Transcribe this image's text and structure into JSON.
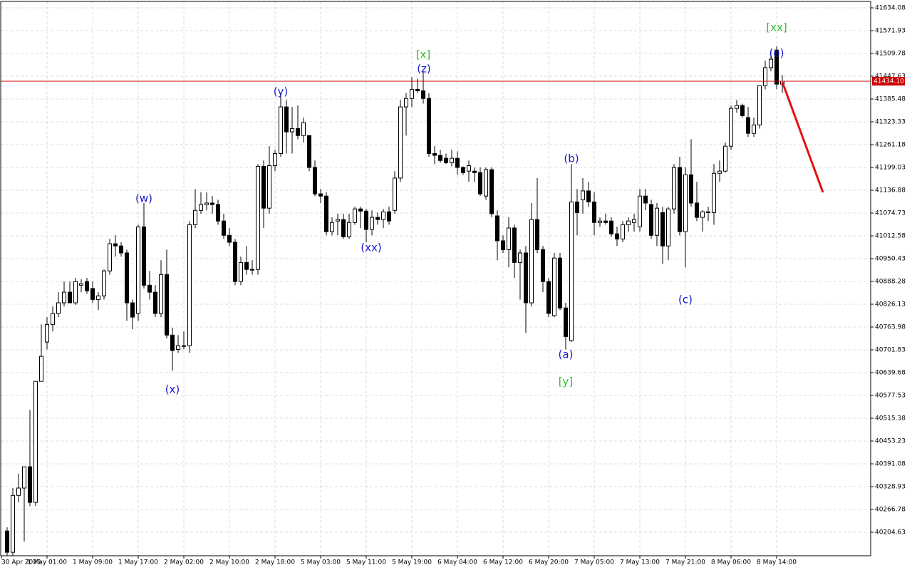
{
  "chart_data": {
    "type": "candlestick",
    "open": [
      40208,
      40150,
      40305,
      40325,
      40383,
      40286,
      40616,
      40723,
      40771,
      40801,
      40830,
      40859,
      40830,
      40878,
      40888,
      40869,
      40839,
      40849,
      40917,
      40991,
      40985,
      40966,
      40830,
      40801,
      41037,
      40878,
      40859,
      40801,
      40907,
      40742,
      40703,
      40713,
      40713,
      41043,
      41082,
      41098,
      41102,
      41098,
      41053,
      41014,
      40995,
      40888,
      40940,
      40921,
      40921,
      41202,
      41088,
      41204,
      41237,
      41364,
      41296,
      41305,
      41286,
      41286,
      41199,
      41127,
      41121,
      41024,
      41053,
      41057,
      41010,
      41049,
      41086,
      41080,
      41030,
      41063,
      41057,
      41078,
      41082,
      41170,
      41364,
      41387,
      41412,
      41408,
      41387,
      41237,
      41232,
      41224,
      41212,
      41224,
      41199,
      41189,
      41189,
      41185,
      41121,
      41193,
      41067,
      40999,
      40975,
      41034,
      40940,
      40966,
      40830,
      41057,
      40975,
      40888,
      40795,
      40952,
      40816,
      40727,
      41105,
      41111,
      41135,
      41105,
      41049,
      41053,
      41053,
      41018,
      41004,
      41043,
      41049,
      41037,
      41121,
      41098,
      41014,
      41076,
      40985,
      41086,
      41199,
      41024,
      41179,
      41102,
      41063,
      41078,
      41076,
      41183,
      41189,
      41257,
      41360,
      41368,
      41335,
      41292,
      41315,
      41422,
      41471,
      41519,
      41426
    ],
    "high": [
      40218,
      40325,
      40364,
      40383,
      40538,
      40616,
      40771,
      40791,
      40820,
      40859,
      40888,
      40888,
      40898,
      40894,
      40898,
      40888,
      40859,
      40921,
      41004,
      41014,
      40995,
      40975,
      40839,
      41043,
      41102,
      40917,
      40878,
      40946,
      40975,
      40762,
      40742,
      40752,
      41053,
      41140,
      41131,
      41131,
      41121,
      41111,
      41073,
      41034,
      41004,
      40956,
      40985,
      40946,
      41208,
      41218,
      41257,
      41247,
      41402,
      41383,
      41364,
      41368,
      41335,
      41286,
      41218,
      41140,
      41131,
      41063,
      41073,
      41073,
      41073,
      41092,
      41092,
      41086,
      41082,
      41076,
      41086,
      41092,
      41189,
      41383,
      41402,
      41445,
      41441,
      41461,
      41402,
      41257,
      41247,
      41237,
      41247,
      41243,
      41202,
      41218,
      41199,
      41199,
      41199,
      41199,
      41082,
      41014,
      41063,
      41043,
      40975,
      40985,
      41102,
      41170,
      40985,
      40898,
      40966,
      40966,
      40830,
      41208,
      41140,
      41170,
      41160,
      41131,
      41063,
      41073,
      41063,
      41037,
      41053,
      41063,
      41073,
      41140,
      41140,
      41111,
      41102,
      41092,
      41092,
      41208,
      41228,
      41199,
      41276,
      41160,
      41082,
      41092,
      41208,
      41218,
      41267,
      41368,
      41383,
      41373,
      41364,
      41335,
      41422,
      41490,
      41519,
      41529,
      41451
    ],
    "low": [
      40140,
      40140,
      40286,
      40179,
      40276,
      40276,
      40616,
      40703,
      40752,
      40791,
      40820,
      40830,
      40824,
      40859,
      40855,
      40830,
      40810,
      40839,
      40907,
      40956,
      40956,
      40781,
      40758,
      40781,
      40869,
      40839,
      40791,
      40791,
      40733,
      40645,
      40694,
      40703,
      40694,
      41034,
      41073,
      41082,
      41073,
      41043,
      41004,
      40985,
      40878,
      40878,
      40907,
      40907,
      40907,
      41034,
      41073,
      41189,
      41228,
      41237,
      41237,
      41276,
      41267,
      41189,
      41121,
      41102,
      41014,
      41014,
      41014,
      41004,
      41004,
      41043,
      41034,
      40995,
      41014,
      41043,
      41034,
      41043,
      41073,
      41160,
      41286,
      41364,
      41402,
      41373,
      41228,
      41208,
      41212,
      41208,
      41202,
      41179,
      41179,
      41160,
      41160,
      41121,
      41111,
      41063,
      40946,
      40966,
      40927,
      40898,
      40839,
      40748,
      40820,
      40966,
      40859,
      40791,
      40791,
      40810,
      40703,
      40723,
      41014,
      41073,
      41092,
      41014,
      41037,
      41043,
      41010,
      40985,
      40995,
      41024,
      41024,
      41024,
      41082,
      41004,
      40985,
      40936,
      40946,
      41073,
      41014,
      40927,
      41092,
      41053,
      41024,
      41053,
      41043,
      41160,
      41185,
      41247,
      41348,
      41335,
      41282,
      41282,
      41305,
      41412,
      41461,
      41412,
      41402
    ],
    "close": [
      40150,
      40305,
      40325,
      40383,
      40286,
      40616,
      40684,
      40771,
      40801,
      40830,
      40859,
      40830,
      40888,
      40882,
      40863,
      40839,
      40849,
      40917,
      40991,
      40985,
      40966,
      40830,
      40791,
      41037,
      40878,
      40859,
      40801,
      40907,
      40742,
      40700,
      40713,
      40713,
      41043,
      41082,
      41098,
      41102,
      41098,
      41053,
      41014,
      40995,
      40888,
      40940,
      40921,
      40921,
      41202,
      41088,
      41204,
      41237,
      41364,
      41296,
      41305,
      41286,
      41321,
      41199,
      41127,
      41121,
      41024,
      41049,
      41057,
      41010,
      41049,
      41086,
      41080,
      41030,
      41063,
      41057,
      41078,
      41053,
      41170,
      41364,
      41387,
      41412,
      41408,
      41387,
      41237,
      41232,
      41218,
      41212,
      41224,
      41199,
      41185,
      41204,
      41185,
      41127,
      41193,
      41073,
      40999,
      40975,
      41034,
      40940,
      40966,
      40830,
      41057,
      40975,
      40888,
      40801,
      40952,
      40816,
      40738,
      41105,
      41076,
      41135,
      41105,
      41049,
      41053,
      41049,
      41018,
      41004,
      41043,
      41053,
      41057,
      41121,
      41102,
      41014,
      41088,
      40985,
      41086,
      41199,
      41024,
      41179,
      41102,
      41063,
      41078,
      41076,
      41183,
      41189,
      41257,
      41360,
      41368,
      41340,
      41292,
      41315,
      41422,
      41471,
      41494,
      41426,
      41434.1
    ],
    "ylim": [
      40140.5,
      41651.6
    ],
    "yticks": [
      41634.08,
      41571.93,
      41509.78,
      41447.63,
      41385.48,
      41323.33,
      41261.18,
      41199.03,
      41136.88,
      41074.73,
      41012.58,
      40950.43,
      40888.28,
      40826.13,
      40763.98,
      40701.83,
      40639.68,
      40577.53,
      40515.38,
      40453.23,
      40391.08,
      40328.93,
      40266.78,
      40204.63
    ],
    "x_tick_labels": [
      "30 Apr 2025",
      "1 May 01:00",
      "1 May 09:00",
      "1 May 17:00",
      "2 May 02:00",
      "2 May 10:00",
      "2 May 18:00",
      "5 May 03:00",
      "5 May 11:00",
      "5 May 19:00",
      "6 May 04:00",
      "6 May 12:00",
      "6 May 20:00",
      "7 May 05:00",
      "7 May 13:00",
      "7 May 21:00",
      "8 May 06:00",
      "8 May 14:00"
    ],
    "current_price": {
      "value": 41434.1,
      "label": "41434.10"
    },
    "current_price_color": "#cc0000",
    "grid": true,
    "annotations": [
      {
        "text": "(w)",
        "color": "#1a1acc"
      },
      {
        "text": "(x)",
        "color": "#1a1acc"
      },
      {
        "text": "(y)",
        "color": "#1a1acc"
      },
      {
        "text": "(xx)",
        "color": "#1a1acc"
      },
      {
        "text": "[x]",
        "color": "#33bb33"
      },
      {
        "text": "(z)",
        "color": "#1a1acc"
      },
      {
        "text": "(b)",
        "color": "#1a1acc"
      },
      {
        "text": "(a)",
        "color": "#1a1acc"
      },
      {
        "text": "[y]",
        "color": "#33bb33"
      },
      {
        "text": "(c)",
        "color": "#1a1acc"
      },
      {
        "text": "[xx]",
        "color": "#33bb33"
      },
      {
        "text": "(e)",
        "color": "#1a1acc"
      }
    ]
  }
}
